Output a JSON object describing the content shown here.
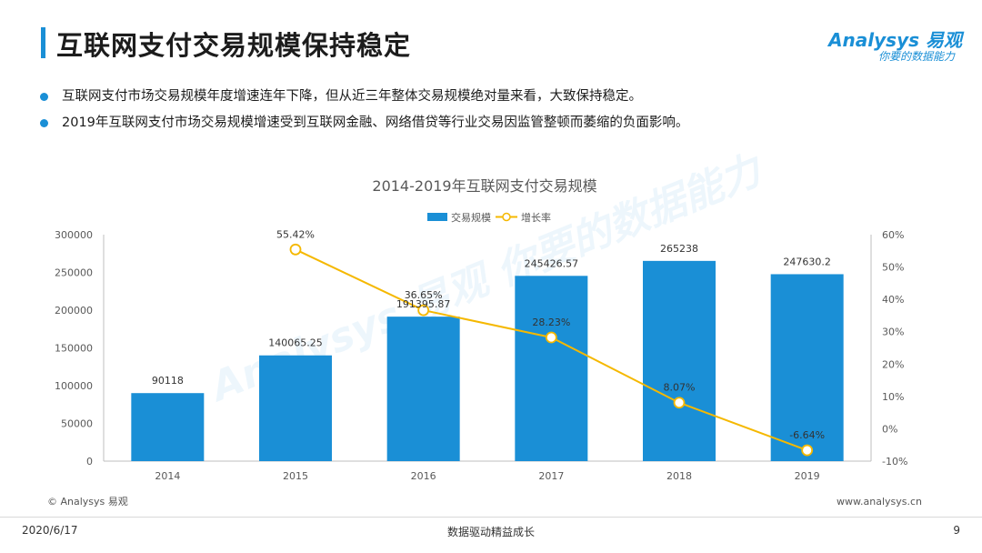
{
  "header": {
    "title": "互联网支付交易规模保持稳定",
    "logo_main": "Analysys 易观",
    "logo_sub": "你要的数据能力"
  },
  "bullets": [
    "互联网支付市场交易规模年度增速连年下降，但从近三年整体交易规模绝对量来看，大致保持稳定。",
    "2019年互联网支付市场交易规模增速受到互联网金融、网络借贷等行业交易因监管整顿而萎缩的负面影响。"
  ],
  "chart_data": {
    "type": "bar",
    "title": "2014-2019年互联网支付交易规模",
    "categories": [
      "2014",
      "2015",
      "2016",
      "2017",
      "2018",
      "2019"
    ],
    "series": [
      {
        "name": "交易规模",
        "type": "bar",
        "axis": "left",
        "values": [
          90118,
          140065.25,
          191395.87,
          245426.57,
          265238,
          247630.2
        ],
        "labels": [
          "90118",
          "140065.25",
          "191395.87",
          "245426.57",
          "265238",
          "247630.2"
        ]
      },
      {
        "name": "增长率",
        "type": "line",
        "axis": "right",
        "x": [
          "2015",
          "2016",
          "2017",
          "2018",
          "2019"
        ],
        "values": [
          55.42,
          36.65,
          28.23,
          8.07,
          -6.64
        ],
        "labels": [
          "55.42%",
          "36.65%",
          "28.23%",
          "8.07%",
          "-6.64%"
        ]
      }
    ],
    "ylim": [
      0,
      300000
    ],
    "yticks": [
      0,
      50000,
      100000,
      150000,
      200000,
      250000,
      300000
    ],
    "ytick_labels": [
      "0",
      "50000",
      "100000",
      "150000",
      "200000",
      "250000",
      "300000"
    ],
    "y2lim": [
      -10,
      60
    ],
    "y2ticks": [
      -10,
      0,
      10,
      20,
      30,
      40,
      50,
      60
    ],
    "y2tick_labels": [
      "-10%",
      "0%",
      "10%",
      "20%",
      "30%",
      "40%",
      "50%",
      "60%"
    ],
    "legend": "top-center",
    "grid": false,
    "colors": {
      "bar": "#1a8fd6",
      "line": "#f5b800",
      "axis": "#bfbfbf",
      "text": "#595959"
    }
  },
  "watermark": "Analysys 易观 你要的数据能力",
  "footer": {
    "copyright": "© Analysys 易观",
    "url": "www.analysys.cn",
    "date": "2020/6/17",
    "center": "数据驱动精益成长",
    "page": "9"
  }
}
